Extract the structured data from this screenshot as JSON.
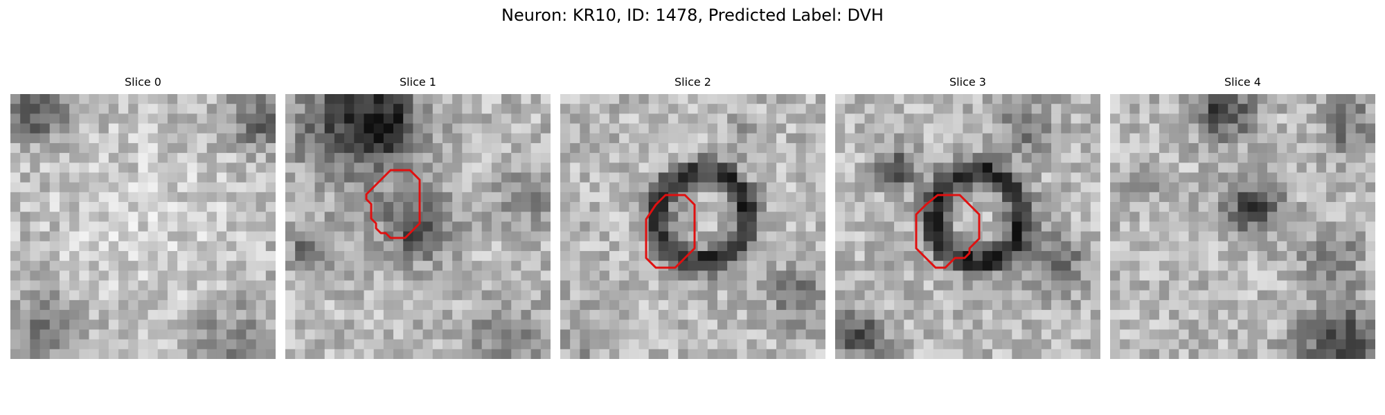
{
  "figure": {
    "title": "Neuron: KR10, ID: 1478, Predicted Label: DVH"
  },
  "panels": [
    {
      "title": "Slice 0",
      "has_contour": false
    },
    {
      "title": "Slice 1",
      "has_contour": true
    },
    {
      "title": "Slice 2",
      "has_contour": true
    },
    {
      "title": "Slice 3",
      "has_contour": true
    },
    {
      "title": "Slice 4",
      "has_contour": false
    }
  ],
  "colors": {
    "contour": "#e01010",
    "colormap": "gray"
  }
}
